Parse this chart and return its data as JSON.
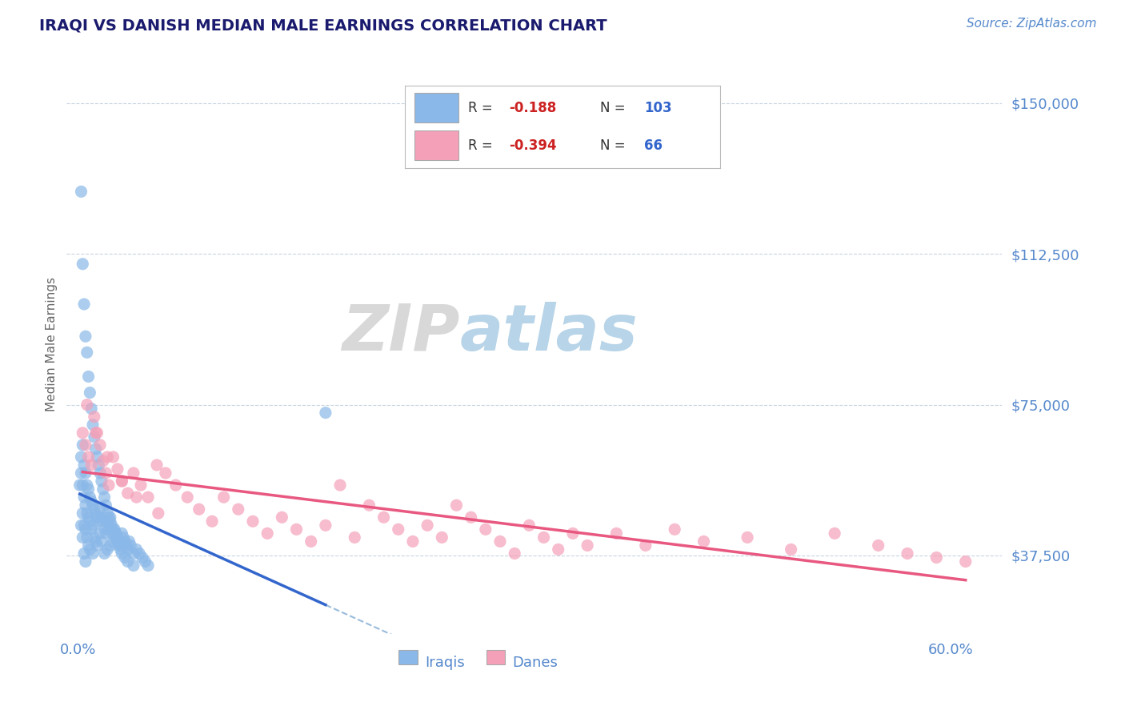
{
  "title": "IRAQI VS DANISH MEDIAN MALE EARNINGS CORRELATION CHART",
  "source": "Source: ZipAtlas.com",
  "ylabel": "Median Male Earnings",
  "R_iraqi": -0.188,
  "N_iraqi": 103,
  "R_danish": -0.394,
  "N_danish": 66,
  "iraqi_color": "#8ab8e8",
  "danish_color": "#f4a0b8",
  "iraqi_line_color": "#3366cc",
  "danish_line_color": "#e85880",
  "dashed_line_color": "#99bbdd",
  "title_color": "#1a1a6e",
  "axis_color": "#5588cc",
  "source_color": "#5588cc",
  "legend_R_color": "#cc2222",
  "legend_N_color": "#3366cc",
  "legend_label_color": "#333333",
  "watermark_ZIP_color": "#d8d8d8",
  "watermark_atlas_color": "#b8d4e8",
  "background_color": "#ffffff",
  "grid_color": "#c8d4e0",
  "iraqi_scatter_x": [
    0.001,
    0.002,
    0.002,
    0.002,
    0.003,
    0.003,
    0.003,
    0.003,
    0.004,
    0.004,
    0.004,
    0.004,
    0.005,
    0.005,
    0.005,
    0.005,
    0.006,
    0.006,
    0.006,
    0.007,
    0.007,
    0.007,
    0.008,
    0.008,
    0.008,
    0.009,
    0.009,
    0.01,
    0.01,
    0.01,
    0.011,
    0.011,
    0.012,
    0.012,
    0.013,
    0.013,
    0.014,
    0.015,
    0.015,
    0.016,
    0.016,
    0.017,
    0.018,
    0.018,
    0.019,
    0.02,
    0.02,
    0.021,
    0.022,
    0.022,
    0.023,
    0.024,
    0.025,
    0.026,
    0.027,
    0.028,
    0.029,
    0.03,
    0.031,
    0.032,
    0.033,
    0.034,
    0.035,
    0.036,
    0.038,
    0.04,
    0.042,
    0.044,
    0.046,
    0.048,
    0.002,
    0.003,
    0.004,
    0.005,
    0.006,
    0.007,
    0.008,
    0.009,
    0.01,
    0.011,
    0.012,
    0.013,
    0.014,
    0.015,
    0.016,
    0.017,
    0.018,
    0.019,
    0.02,
    0.021,
    0.022,
    0.023,
    0.024,
    0.025,
    0.026,
    0.027,
    0.028,
    0.029,
    0.03,
    0.032,
    0.034,
    0.038,
    0.17
  ],
  "iraqi_scatter_y": [
    55000,
    58000,
    62000,
    45000,
    65000,
    55000,
    48000,
    42000,
    60000,
    52000,
    45000,
    38000,
    58000,
    50000,
    44000,
    36000,
    55000,
    48000,
    42000,
    54000,
    47000,
    40000,
    52000,
    46000,
    39000,
    51000,
    44000,
    50000,
    45000,
    38000,
    49000,
    42000,
    48000,
    41000,
    47000,
    40000,
    46000,
    49000,
    43000,
    47000,
    41000,
    46000,
    44000,
    38000,
    43000,
    46000,
    39000,
    44000,
    47000,
    40000,
    43000,
    41000,
    44000,
    43000,
    42000,
    41000,
    40000,
    43000,
    42000,
    41000,
    40000,
    39000,
    41000,
    40000,
    38000,
    39000,
    38000,
    37000,
    36000,
    35000,
    128000,
    110000,
    100000,
    92000,
    88000,
    82000,
    78000,
    74000,
    70000,
    67000,
    64000,
    62000,
    60000,
    58000,
    56000,
    54000,
    52000,
    50000,
    48000,
    47000,
    46000,
    45000,
    44000,
    43000,
    42000,
    41000,
    40000,
    39000,
    38000,
    37000,
    36000,
    35000,
    73000
  ],
  "danish_scatter_x": [
    0.003,
    0.005,
    0.007,
    0.009,
    0.011,
    0.013,
    0.015,
    0.017,
    0.019,
    0.021,
    0.024,
    0.027,
    0.03,
    0.034,
    0.038,
    0.043,
    0.048,
    0.054,
    0.06,
    0.067,
    0.075,
    0.083,
    0.092,
    0.1,
    0.11,
    0.12,
    0.13,
    0.14,
    0.15,
    0.16,
    0.17,
    0.18,
    0.19,
    0.2,
    0.21,
    0.22,
    0.23,
    0.24,
    0.25,
    0.26,
    0.27,
    0.28,
    0.29,
    0.3,
    0.31,
    0.32,
    0.33,
    0.34,
    0.35,
    0.37,
    0.39,
    0.41,
    0.43,
    0.46,
    0.49,
    0.52,
    0.55,
    0.57,
    0.59,
    0.61,
    0.006,
    0.012,
    0.02,
    0.03,
    0.04,
    0.055
  ],
  "danish_scatter_y": [
    68000,
    65000,
    62000,
    60000,
    72000,
    68000,
    65000,
    61000,
    58000,
    55000,
    62000,
    59000,
    56000,
    53000,
    58000,
    55000,
    52000,
    60000,
    58000,
    55000,
    52000,
    49000,
    46000,
    52000,
    49000,
    46000,
    43000,
    47000,
    44000,
    41000,
    45000,
    55000,
    42000,
    50000,
    47000,
    44000,
    41000,
    45000,
    42000,
    50000,
    47000,
    44000,
    41000,
    38000,
    45000,
    42000,
    39000,
    43000,
    40000,
    43000,
    40000,
    44000,
    41000,
    42000,
    39000,
    43000,
    40000,
    38000,
    37000,
    36000,
    75000,
    68000,
    62000,
    56000,
    52000,
    48000
  ]
}
